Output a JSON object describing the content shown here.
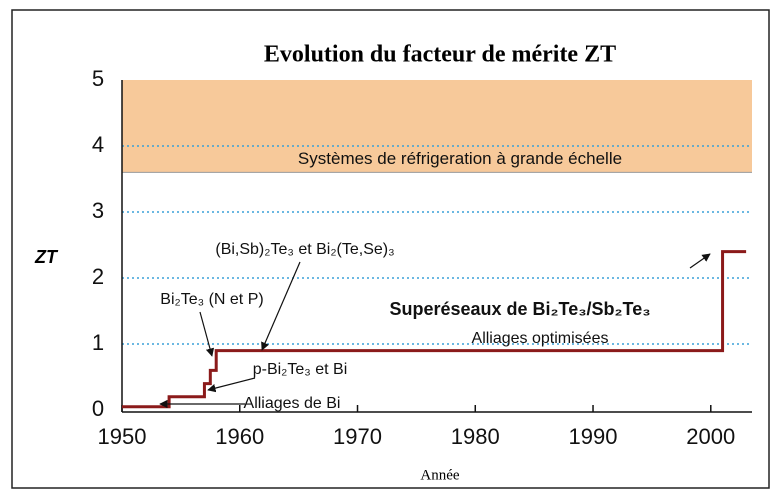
{
  "chart_data": {
    "type": "line",
    "step": "post",
    "title": "Evolution du facteur de mérite ZT",
    "x_label": "Année",
    "y_label": "ZT",
    "x": [
      1950,
      1954,
      1957,
      1957.5,
      1958,
      2001,
      2003
    ],
    "series": [
      {
        "color": "#8b1a1a",
        "values": [
          0.05,
          0.2,
          0.4,
          0.6,
          0.9,
          2.4,
          2.4
        ]
      }
    ],
    "xlim": [
      1950,
      2003.5
    ],
    "xticks": [
      1950,
      1960,
      1970,
      1980,
      1990,
      2000
    ],
    "ylim": [
      0,
      5
    ],
    "yticks": [
      0,
      1,
      2,
      3,
      4,
      5
    ],
    "grid": true,
    "band": {
      "from": 3.6,
      "to": 5,
      "color": "#f7c99a",
      "label": "Systèmes de réfrigeration à grande échelle"
    },
    "annotations": [
      {
        "text": "(Bi,Sb)₂Te₃ et Bi₂(Te,Se)₃",
        "color": "#111111"
      },
      {
        "text": "Bi₂Te₃ (N et P)",
        "color": "#111111"
      },
      {
        "text": "Superéseaux de Bi₂Te₃/Sb₂Te₃",
        "color": "#b0202a"
      },
      {
        "text": "Alliages optimisées",
        "color": "#111111"
      },
      {
        "text": "p-Bi₂Te₃ et Bi",
        "color": "#111111"
      },
      {
        "text": "Alliages de Bi",
        "color": "#111111"
      }
    ]
  }
}
